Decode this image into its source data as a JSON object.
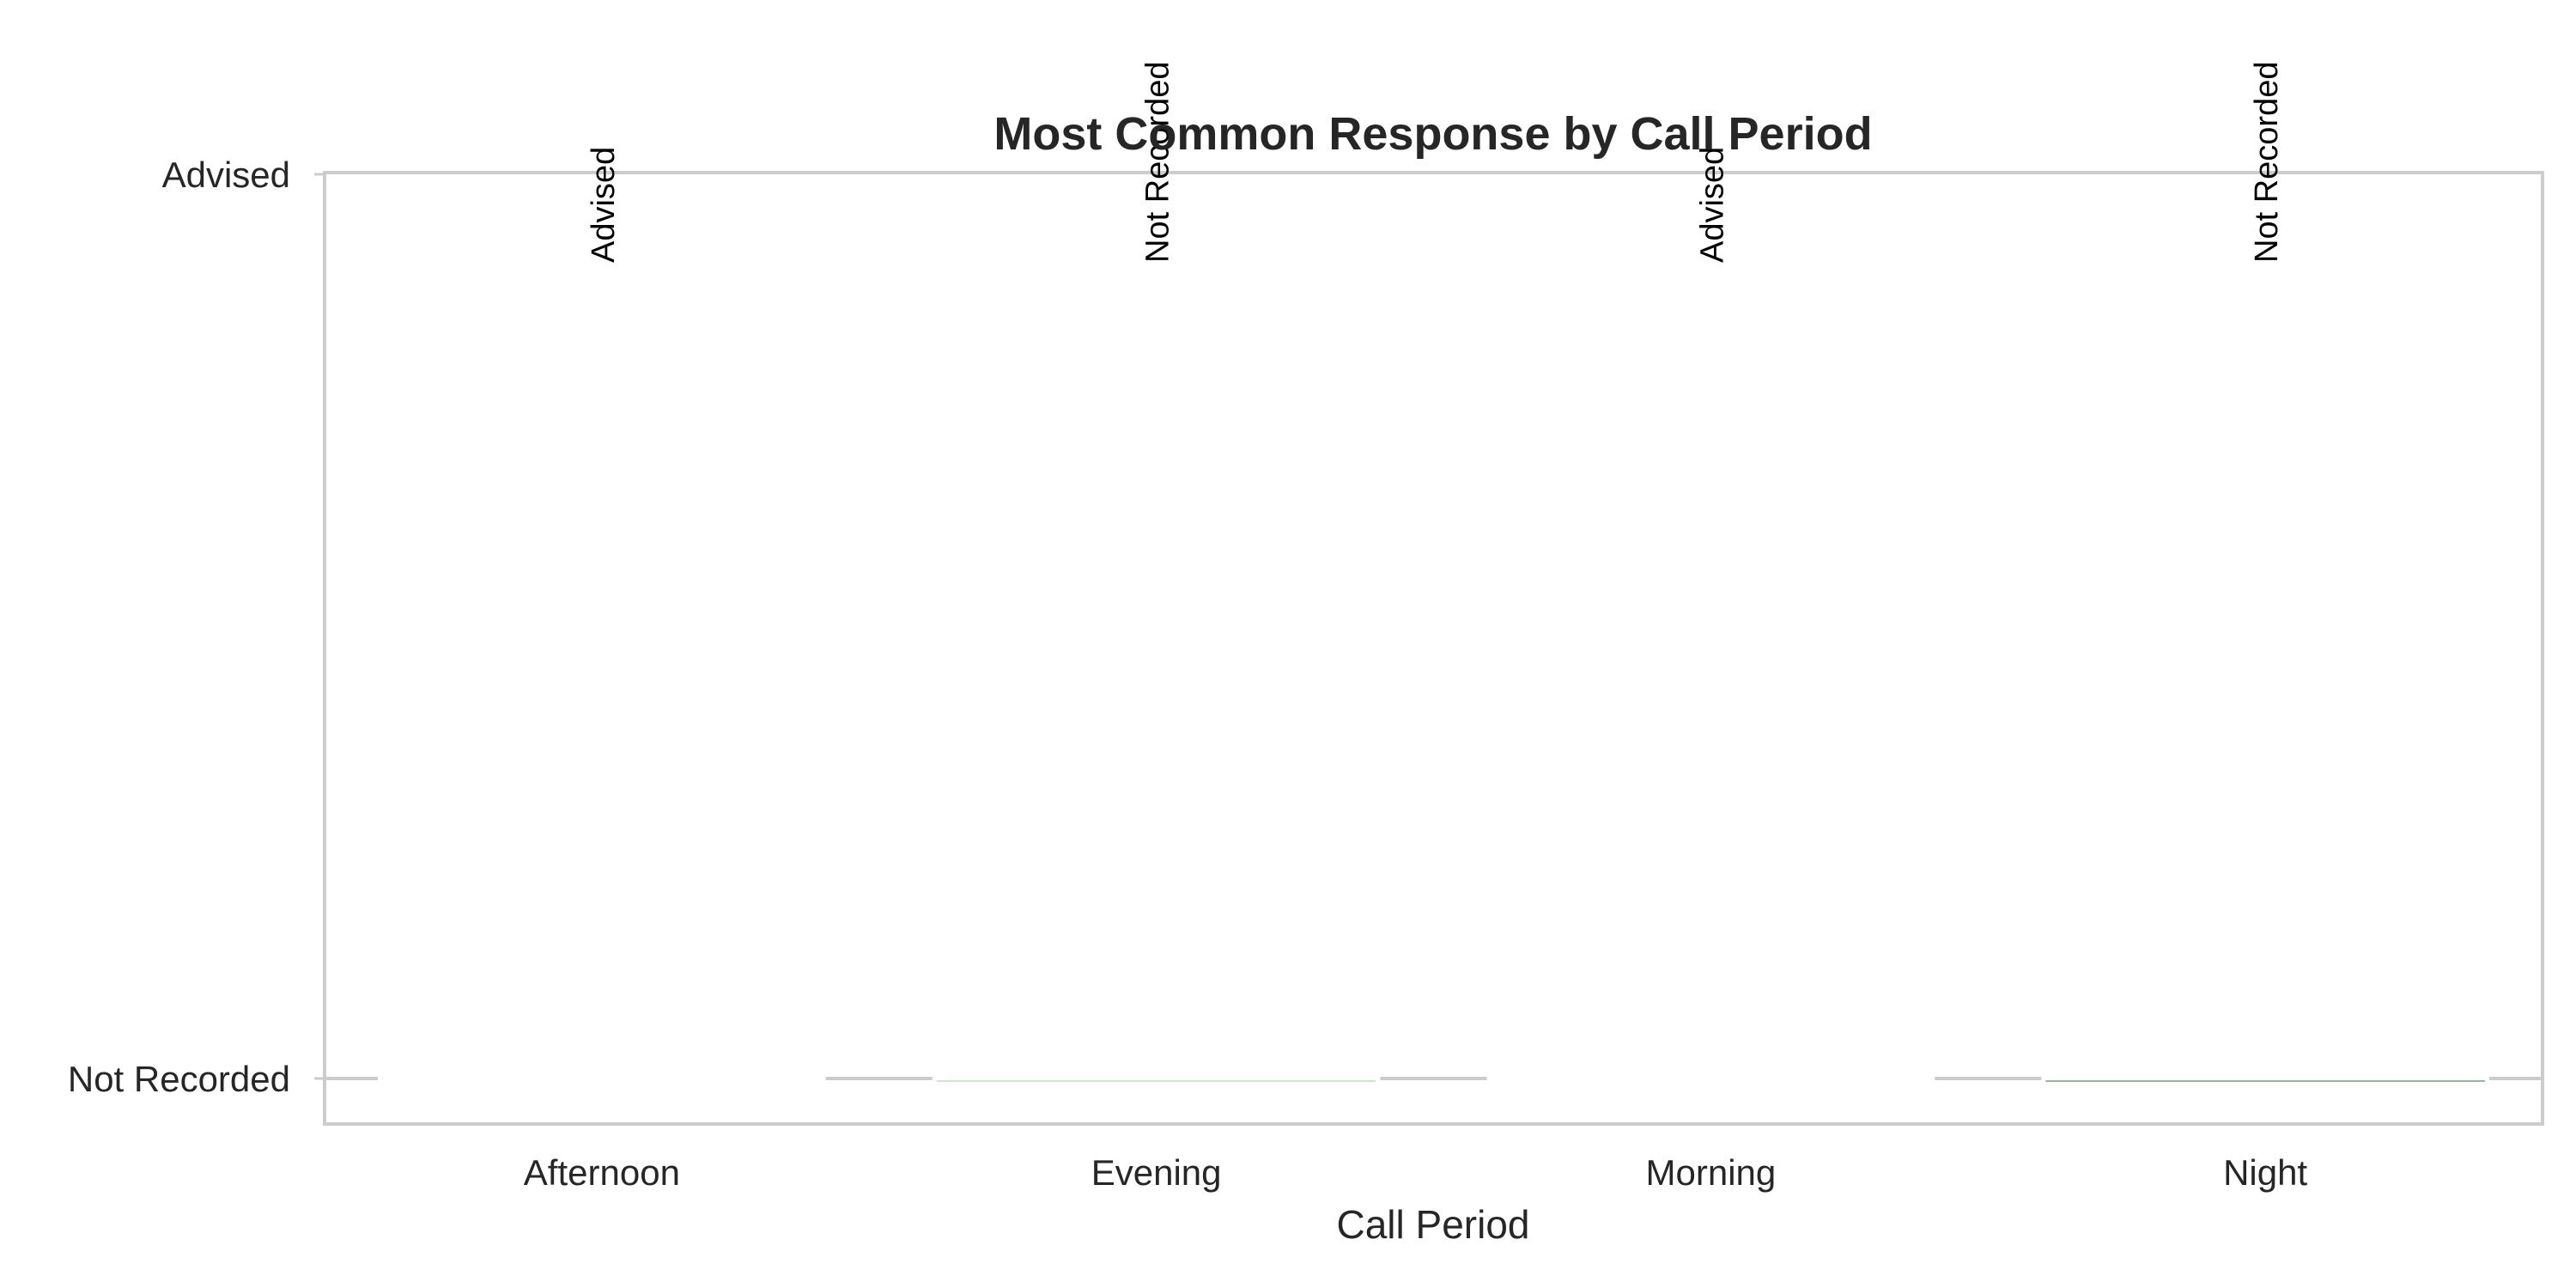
{
  "chart_data": {
    "type": "bar",
    "title": "Most Common Response by Call Period",
    "xlabel": "Call Period",
    "ylabel": "",
    "categories": [
      "Afternoon",
      "Evening",
      "Morning",
      "Night"
    ],
    "y_categories": [
      "Not Recorded",
      "Advised"
    ],
    "values": [
      "Advised",
      "Not Recorded",
      "Advised",
      "Not Recorded"
    ],
    "bar_labels": [
      "Advised",
      "Not Recorded",
      "Advised",
      "Not Recorded"
    ],
    "colors": [
      "#ffffff",
      "#a1cd9b",
      "#ffffff",
      "#237340"
    ],
    "grid": false,
    "legend": "none"
  }
}
